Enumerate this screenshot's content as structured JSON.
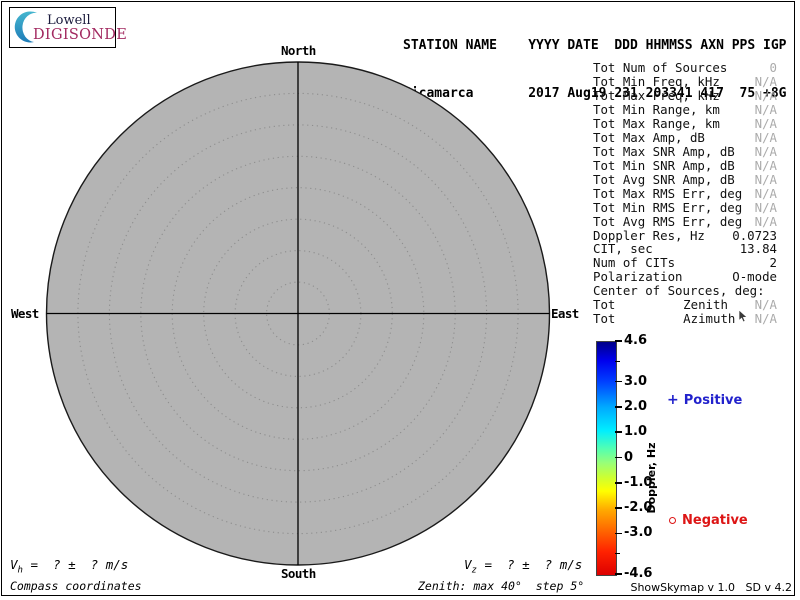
{
  "logo": {
    "line1": "Lowell",
    "line2": "DIGISONDE",
    "crescent_color_top": "#45b6cf",
    "crescent_color_bottom": "#1e7cb8",
    "digisonde_color": "#a22960"
  },
  "header": {
    "line1": "STATION NAME    YYYY DATE  DDD HHMMSS AXN PPS IGP",
    "line2": "Jicamarca       2017 Aug19 231 203341 417  75 +8G",
    "station_name": "Jicamarca",
    "year": "2017",
    "date": "Aug19",
    "ddd": "231",
    "hhmmss": "203341",
    "axn": "417",
    "pps": "75",
    "igp": "+8G"
  },
  "skymap": {
    "labels": {
      "north": "North",
      "south": "South",
      "east": "East",
      "west": "West"
    },
    "zenith_max_deg": 40,
    "zenith_step_deg": 5,
    "fill": "#b4b4b4",
    "ring_color": "#8e8e8e",
    "outline_color": "#1a1a1a"
  },
  "stats": {
    "rows": [
      {
        "label": "Tot Num of Sources",
        "value": "0",
        "dim": true
      },
      {
        "label": "Tot Min Freq, kHz",
        "value": "N/A",
        "dim": true
      },
      {
        "label": "Tot Max Freq, kHz",
        "value": "N/A",
        "dim": true
      },
      {
        "label": "Tot Min Range, km",
        "value": "N/A",
        "dim": true
      },
      {
        "label": "Tot Max Range, km",
        "value": "N/A",
        "dim": true
      },
      {
        "label": "Tot Max Amp, dB",
        "value": "N/A",
        "dim": true
      },
      {
        "label": "Tot Max SNR Amp, dB",
        "value": "N/A",
        "dim": true
      },
      {
        "label": "Tot Min SNR Amp, dB",
        "value": "N/A",
        "dim": true
      },
      {
        "label": "Tot Avg SNR Amp, dB",
        "value": "N/A",
        "dim": true
      },
      {
        "label": "Tot Max RMS Err, deg",
        "value": "N/A",
        "dim": true
      },
      {
        "label": "Tot Min RMS Err, deg",
        "value": "N/A",
        "dim": true
      },
      {
        "label": "Tot Avg RMS Err, deg",
        "value": "N/A",
        "dim": true
      },
      {
        "label": "Doppler Res, Hz",
        "value": "0.0723",
        "dim": false
      },
      {
        "label": "CIT, sec",
        "value": "13.84",
        "dim": false
      },
      {
        "label": "Num of CITs",
        "value": "2",
        "dim": false
      },
      {
        "label": "Polarization",
        "value": "O-mode",
        "dim": false
      },
      {
        "label": "Center of Sources, deg:",
        "value": "",
        "dim": false
      },
      {
        "label": "Tot",
        "mid": "Zenith",
        "value": "N/A",
        "dim": true
      },
      {
        "label": "Tot",
        "mid": "Azimuth",
        "value": "N/A",
        "dim": true
      }
    ]
  },
  "colorbar": {
    "title": "Doppler, Hz",
    "max": 4.6,
    "min": -4.6,
    "ticks": [
      {
        "v": 4.6,
        "label": "4.6"
      },
      {
        "v": 3.8
      },
      {
        "v": 3.0,
        "label": "3.0"
      },
      {
        "v": 2.0,
        "label": "2.0"
      },
      {
        "v": 1.0,
        "label": "1.0"
      },
      {
        "v": 0.0,
        "label": "0"
      },
      {
        "v": -1.0,
        "label": "-1.0"
      },
      {
        "v": -2.0,
        "label": "-2.0"
      },
      {
        "v": -3.0,
        "label": "-3.0"
      },
      {
        "v": -3.8
      },
      {
        "v": -4.6,
        "label": "-4.6"
      }
    ],
    "gradient_stops": [
      {
        "p": 0,
        "c": "#000088"
      },
      {
        "p": 8,
        "c": "#0000ee"
      },
      {
        "p": 17,
        "c": "#0040ff"
      },
      {
        "p": 28,
        "c": "#00aaff"
      },
      {
        "p": 38,
        "c": "#00eeff"
      },
      {
        "p": 46,
        "c": "#55ffb0"
      },
      {
        "p": 52,
        "c": "#99ff77"
      },
      {
        "p": 58,
        "c": "#ccff33"
      },
      {
        "p": 64,
        "c": "#ffff00"
      },
      {
        "p": 72,
        "c": "#ffaa00"
      },
      {
        "p": 81,
        "c": "#ff6600"
      },
      {
        "p": 90,
        "c": "#ff2200"
      },
      {
        "p": 100,
        "c": "#dd0000"
      }
    ],
    "positive": {
      "marker": "+",
      "label": "Positive",
      "color": "#2222cc"
    },
    "negative": {
      "marker": "o",
      "label": "Negative",
      "color": "#dd1515"
    }
  },
  "footer": {
    "vh": {
      "var": "V",
      "sub": "h",
      "rest": " =  ? ±  ? m/s"
    },
    "vz": {
      "var": "V",
      "sub": "z",
      "rest": " =  ? ±  ? m/s"
    },
    "coords_label": "Compass coordinates",
    "zenith_label": "Zenith: max 40°  step 5°",
    "version": "ShowSkymap v 1.0   SD v 4.2"
  }
}
